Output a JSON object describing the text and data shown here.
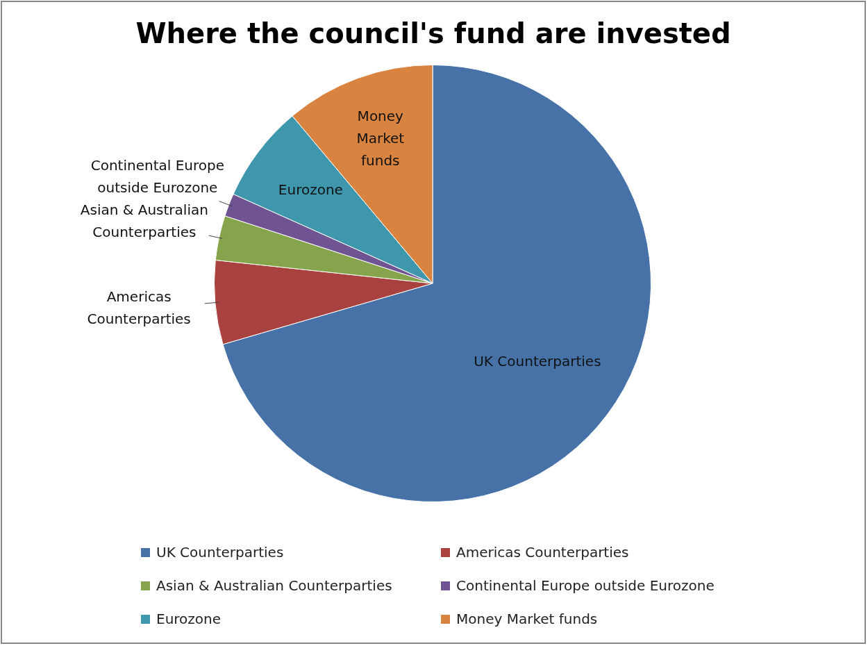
{
  "chart_data": {
    "type": "pie",
    "title": "Where the council's fund are invested",
    "categories": [
      "UK Counterparties",
      "Americas Counterparties",
      "Asian & Australian Counterparties",
      "Continental Europe outside Eurozone",
      "Eurozone",
      "Money Market funds"
    ],
    "values": [
      70.5,
      6.2,
      3.3,
      1.7,
      7.2,
      11.1
    ],
    "colors": [
      "#4672a8",
      "#a8413f",
      "#86a44b",
      "#6f5393",
      "#3f97ae",
      "#d98340"
    ],
    "legend": "bottom"
  }
}
